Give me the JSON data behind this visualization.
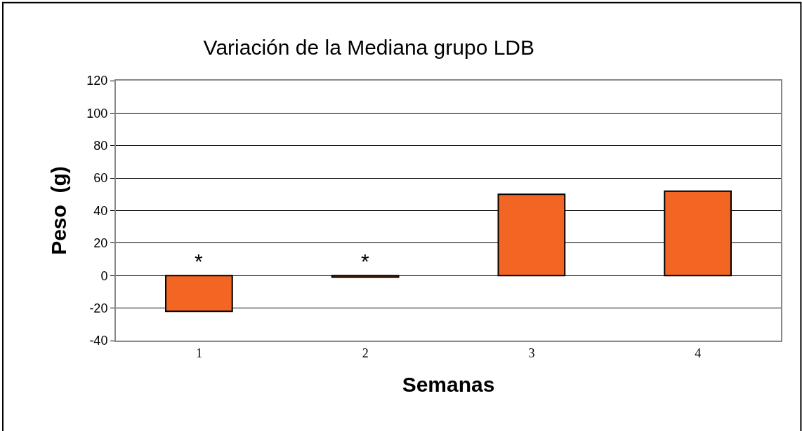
{
  "chart_data": {
    "type": "bar",
    "title": "Variación de la Mediana grupo LDB",
    "xlabel": "Semanas",
    "ylabel": "Peso  (g)",
    "categories": [
      "1",
      "2",
      "3",
      "4"
    ],
    "values": [
      -22,
      -1,
      50,
      52
    ],
    "color": "#f26522",
    "ylim": [
      -40,
      120
    ],
    "yticks": [
      -40,
      -20,
      0,
      20,
      40,
      60,
      80,
      100,
      120
    ],
    "grid": "y",
    "annotations": [
      "*",
      "*"
    ]
  }
}
